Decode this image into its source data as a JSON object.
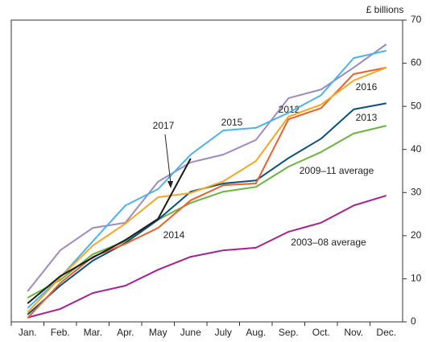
{
  "chart_data": {
    "type": "line",
    "y_axis_label": "£ billions",
    "categories": [
      "Jan.",
      "Feb.",
      "Mar.",
      "Apr.",
      "May",
      "June",
      "July",
      "Aug.",
      "Sep.",
      "Oct.",
      "Nov.",
      "Dec."
    ],
    "ylim": [
      0,
      70
    ],
    "yticks": [
      0,
      10,
      20,
      30,
      40,
      50,
      60,
      70
    ],
    "series": [
      {
        "name": "2003–08 average",
        "color": "#a3228d",
        "values": [
          1,
          3,
          6.7,
          8.4,
          12.1,
          15.1,
          16.6,
          17.2,
          20.9,
          23,
          27,
          29.3
        ]
      },
      {
        "name": "2009–11 average",
        "color": "#6ab33f",
        "values": [
          5.6,
          9.7,
          15.7,
          18.7,
          23.7,
          27.6,
          30.2,
          31.3,
          36,
          39.4,
          43.7,
          45.5
        ]
      },
      {
        "name": "2012",
        "color": "#9d8bc0",
        "values": [
          7.1,
          16.6,
          21.8,
          23,
          32.5,
          37,
          38.8,
          42.2,
          51.9,
          53.9,
          59,
          64.4
        ]
      },
      {
        "name": "2013",
        "color": "#0b4f7c",
        "values": [
          1.7,
          8.4,
          14.2,
          18.3,
          23.7,
          30.2,
          32.1,
          32.8,
          38,
          42.5,
          49.3,
          50.7
        ]
      },
      {
        "name": "2014",
        "color": "#e8602c",
        "values": [
          0.9,
          9,
          15.1,
          18.1,
          21.8,
          28.2,
          31.7,
          32.1,
          47,
          49.6,
          57.5,
          59
        ]
      },
      {
        "name": "2015",
        "color": "#4db3e6",
        "values": [
          3.2,
          10.3,
          18.7,
          27,
          30.8,
          38.8,
          44.4,
          45,
          48.5,
          52.6,
          61.2,
          62.9
        ]
      },
      {
        "name": "2016",
        "color": "#f5a623",
        "values": [
          2.2,
          10.3,
          17.7,
          22.8,
          28.9,
          29.9,
          32.6,
          37.3,
          47.6,
          50.4,
          56,
          59
        ]
      },
      {
        "name": "2017",
        "color": "#1a1a1a",
        "values": [
          4.3,
          10.6,
          14.9,
          19,
          23.9,
          37.9,
          null,
          null,
          null,
          null,
          null,
          null
        ]
      }
    ]
  }
}
